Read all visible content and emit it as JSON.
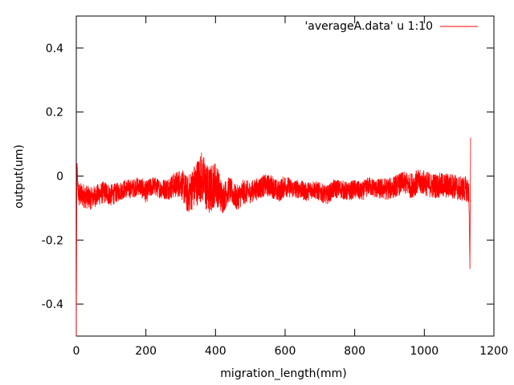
{
  "chart_data": {
    "type": "line",
    "xlabel": "migration_length(mm)",
    "ylabel": "output(um)",
    "xlim": [
      0,
      1200
    ],
    "ylim": [
      -0.5,
      0.5
    ],
    "x_ticks": [
      "0",
      "200",
      "400",
      "600",
      "800",
      "1000",
      "1200"
    ],
    "y_ticks": [
      "-0.4",
      "-0.2",
      "0",
      "0.2",
      "0.4"
    ],
    "x_tick_values": [
      0,
      200,
      400,
      600,
      800,
      1000,
      1200
    ],
    "y_tick_values": [
      -0.4,
      -0.2,
      0,
      0.2,
      0.4
    ],
    "grid": false,
    "legend_position": "top-right",
    "series": [
      {
        "name": "'averageA.data' u 1:10",
        "color": "#ff0000",
        "x": [
          0,
          2,
          4,
          6,
          8,
          20,
          40,
          60,
          80,
          100,
          120,
          140,
          160,
          180,
          200,
          220,
          240,
          260,
          280,
          300,
          320,
          340,
          360,
          380,
          400,
          420,
          440,
          460,
          480,
          500,
          520,
          540,
          560,
          580,
          600,
          620,
          640,
          660,
          680,
          700,
          720,
          740,
          760,
          780,
          800,
          820,
          840,
          860,
          880,
          900,
          920,
          940,
          960,
          980,
          1000,
          1020,
          1040,
          1060,
          1080,
          1100,
          1120,
          1128,
          1131,
          1133
        ],
        "y": [
          -0.5,
          0.04,
          -0.03,
          -0.05,
          -0.06,
          -0.06,
          -0.07,
          -0.06,
          -0.05,
          -0.06,
          -0.05,
          -0.04,
          -0.04,
          -0.03,
          -0.05,
          -0.03,
          -0.04,
          -0.04,
          -0.03,
          -0.02,
          -0.06,
          -0.03,
          0.0,
          -0.05,
          -0.02,
          -0.07,
          -0.04,
          -0.07,
          -0.05,
          -0.05,
          -0.04,
          -0.03,
          -0.03,
          -0.05,
          -0.03,
          -0.04,
          -0.04,
          -0.05,
          -0.04,
          -0.05,
          -0.06,
          -0.04,
          -0.04,
          -0.05,
          -0.04,
          -0.05,
          -0.03,
          -0.04,
          -0.04,
          -0.04,
          -0.03,
          -0.02,
          -0.03,
          -0.02,
          -0.02,
          -0.03,
          -0.03,
          -0.03,
          -0.03,
          -0.04,
          -0.04,
          -0.05,
          -0.29,
          0.12
        ],
        "band": [
          0.02,
          0.03,
          0.03,
          0.04,
          0.04,
          0.04,
          0.035,
          0.035,
          0.035,
          0.035,
          0.03,
          0.03,
          0.03,
          0.03,
          0.035,
          0.03,
          0.03,
          0.035,
          0.04,
          0.045,
          0.06,
          0.07,
          0.08,
          0.08,
          0.07,
          0.05,
          0.04,
          0.04,
          0.04,
          0.035,
          0.035,
          0.035,
          0.035,
          0.035,
          0.035,
          0.03,
          0.03,
          0.03,
          0.03,
          0.03,
          0.03,
          0.03,
          0.03,
          0.03,
          0.03,
          0.03,
          0.03,
          0.03,
          0.035,
          0.035,
          0.035,
          0.035,
          0.04,
          0.04,
          0.04,
          0.04,
          0.04,
          0.04,
          0.04,
          0.04,
          0.04,
          0.04,
          0.01,
          0.01
        ]
      }
    ]
  }
}
